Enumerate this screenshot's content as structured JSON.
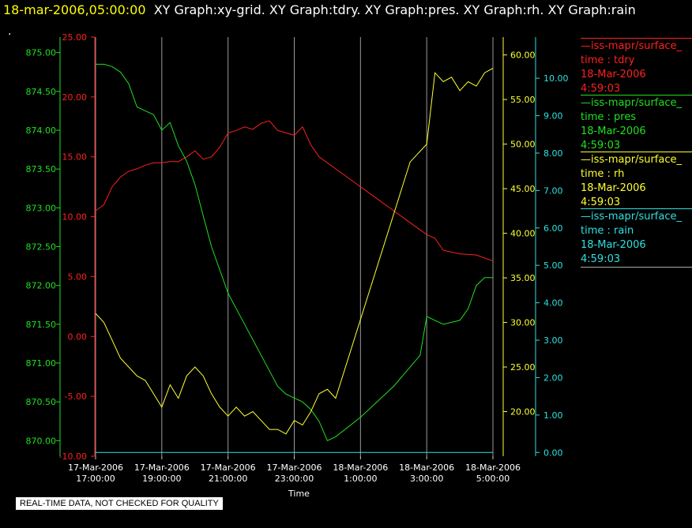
{
  "header": {
    "timestamp": "18-mar-2006,05:00:00",
    "titles": "XY Graph:xy-grid.  XY Graph:tdry.  XY Graph:pres.  XY Graph:rh.  XY Graph:rain"
  },
  "dot": ".",
  "footer_note": "REAL-TIME DATA, NOT CHECKED FOR QUALITY",
  "legend": [
    {
      "name": "—iss-mapr/surface_",
      "var": "time : tdry",
      "date": "18-Mar-2006",
      "time": "4:59:03",
      "color": "#ff2020"
    },
    {
      "name": "—iss-mapr/surface_",
      "var": "time : pres",
      "date": "18-Mar-2006",
      "time": "4:59:03",
      "color": "#20e020"
    },
    {
      "name": "—iss-mapr/surface_",
      "var": "time : rh",
      "date": "18-Mar-2006",
      "time": "4:59:03",
      "color": "#ffff30"
    },
    {
      "name": "—iss-mapr/surface_",
      "var": "time : rain",
      "date": "18-Mar-2006",
      "time": "4:59:03",
      "color": "#30e0e0"
    }
  ],
  "chart_data": {
    "type": "line",
    "xlabel": "Time",
    "x_ticks": [
      {
        "h": 17,
        "l1": "17-Mar-2006",
        "l2": "17:00:00"
      },
      {
        "h": 19,
        "l1": "17-Mar-2006",
        "l2": "19:00:00"
      },
      {
        "h": 21,
        "l1": "17-Mar-2006",
        "l2": "21:00:00"
      },
      {
        "h": 23,
        "l1": "17-Mar-2006",
        "l2": "23:00:00"
      },
      {
        "h": 25,
        "l1": "18-Mar-2006",
        "l2": "1:00:00"
      },
      {
        "h": 27,
        "l1": "18-Mar-2006",
        "l2": "3:00:00"
      },
      {
        "h": 29,
        "l1": "18-Mar-2006",
        "l2": "5:00:00"
      }
    ],
    "x_range_hours_from_17mar_0000": [
      17,
      29
    ],
    "grid": "vertical lines at x ticks",
    "axes": {
      "tdry": {
        "range": [
          -10,
          25
        ],
        "ticks": [
          "-10.00",
          "-5.00",
          "0.00",
          "5.00",
          "10.00",
          "15.00",
          "20.00",
          "25.00"
        ],
        "color": "#ff2020"
      },
      "pres": {
        "range": [
          869.8,
          875.2
        ],
        "ticks": [
          "870.00",
          "870.50",
          "871.00",
          "871.50",
          "872.00",
          "872.50",
          "873.00",
          "873.50",
          "874.00",
          "874.50",
          "875.00"
        ],
        "color": "#20e020"
      },
      "rh": {
        "range": [
          15,
          62
        ],
        "ticks": [
          "20.00",
          "25.00",
          "30.00",
          "35.00",
          "40.00",
          "45.00",
          "50.00",
          "55.00",
          "60.00"
        ],
        "color": "#ffff30"
      },
      "rain": {
        "range": [
          -0.1,
          11.1
        ],
        "ticks": [
          "0.00",
          "1.00",
          "2.00",
          "3.00",
          "4.00",
          "5.00",
          "6.00",
          "7.00",
          "8.00",
          "9.00",
          "10.00"
        ],
        "color": "#30e0e0"
      }
    },
    "series": [
      {
        "name": "tdry",
        "axis": "tdry",
        "color": "#ff2020",
        "x": [
          17.0,
          17.25,
          17.5,
          17.75,
          18.0,
          18.25,
          18.5,
          18.75,
          19.0,
          19.25,
          19.5,
          19.75,
          20.0,
          20.25,
          20.5,
          20.75,
          21.0,
          21.25,
          21.5,
          21.75,
          22.0,
          22.25,
          22.5,
          22.75,
          23.0,
          23.25,
          23.5,
          23.75,
          24.0,
          24.25,
          24.5,
          24.75,
          25.0,
          25.5,
          26.0,
          26.5,
          27.0,
          27.25,
          27.5,
          28.0,
          28.5,
          29.0
        ],
        "y": [
          10.5,
          11.0,
          12.5,
          13.3,
          13.8,
          14.0,
          14.3,
          14.5,
          14.5,
          14.6,
          14.6,
          15.0,
          15.5,
          14.8,
          15.0,
          15.8,
          17.0,
          17.2,
          17.5,
          17.3,
          17.8,
          18.0,
          17.2,
          17.0,
          16.8,
          17.5,
          16.0,
          15.0,
          14.5,
          14.0,
          13.5,
          13.0,
          12.5,
          11.5,
          10.5,
          9.5,
          8.5,
          8.2,
          7.2,
          6.9,
          6.8,
          6.3
        ]
      },
      {
        "name": "pres",
        "axis": "pres",
        "color": "#20e020",
        "x": [
          17.0,
          17.25,
          17.5,
          17.75,
          18.0,
          18.25,
          18.5,
          18.75,
          19.0,
          19.25,
          19.5,
          19.75,
          20.0,
          20.25,
          20.5,
          20.75,
          21.0,
          21.25,
          21.5,
          21.75,
          22.0,
          22.25,
          22.5,
          22.75,
          23.0,
          23.25,
          23.5,
          23.75,
          24.0,
          24.25,
          25.0,
          26.0,
          26.8,
          27.0,
          27.25,
          27.5,
          28.0,
          28.25,
          28.5,
          28.75,
          29.0
        ],
        "y": [
          874.85,
          874.85,
          874.82,
          874.75,
          874.6,
          874.3,
          874.25,
          874.2,
          874.0,
          874.1,
          873.8,
          873.6,
          873.3,
          872.9,
          872.5,
          872.2,
          871.9,
          871.7,
          871.5,
          871.3,
          871.1,
          870.9,
          870.7,
          870.6,
          870.55,
          870.5,
          870.4,
          870.25,
          870.0,
          870.05,
          870.3,
          870.7,
          871.1,
          871.6,
          871.55,
          871.5,
          871.55,
          871.7,
          872.0,
          872.1,
          872.1
        ]
      },
      {
        "name": "rh",
        "axis": "rh",
        "color": "#ffff30",
        "x": [
          17.0,
          17.25,
          17.5,
          17.75,
          18.0,
          18.25,
          18.5,
          18.75,
          19.0,
          19.25,
          19.5,
          19.75,
          20.0,
          20.25,
          20.5,
          20.75,
          21.0,
          21.25,
          21.5,
          21.75,
          22.0,
          22.25,
          22.5,
          22.75,
          23.0,
          23.25,
          23.5,
          23.75,
          24.0,
          24.25,
          26.5,
          27.0,
          27.25,
          27.5,
          27.75,
          28.0,
          28.25,
          28.5,
          28.75,
          29.0
        ],
        "y": [
          31.0,
          30.0,
          28.0,
          26.0,
          25.0,
          24.0,
          23.5,
          22.0,
          20.5,
          23.0,
          21.5,
          24.0,
          25.0,
          24.0,
          22.0,
          20.5,
          19.5,
          20.5,
          19.5,
          20.0,
          19.0,
          18.0,
          18.0,
          17.5,
          19.0,
          18.5,
          20.0,
          22.0,
          22.5,
          21.5,
          48.0,
          50.0,
          58.0,
          57.0,
          57.5,
          56.0,
          57.0,
          56.5,
          58.0,
          58.5
        ]
      },
      {
        "name": "rain",
        "axis": "rain",
        "color": "#30e0e0",
        "x": [
          17.0,
          29.0
        ],
        "y": [
          0.0,
          0.0
        ]
      }
    ]
  }
}
